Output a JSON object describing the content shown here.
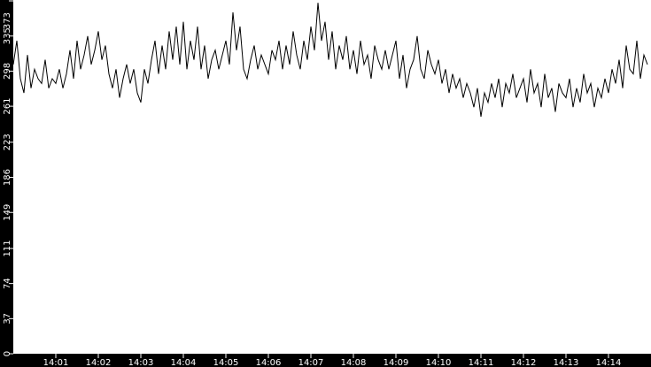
{
  "chart_data": {
    "type": "line",
    "title": "",
    "xlabel": "",
    "ylabel": "",
    "x_start": "14:00:00",
    "x_end": "14:15:00",
    "sample_interval_seconds": 5,
    "ylim": [
      0,
      373
    ],
    "y_ticks": [
      "0",
      "37",
      "74",
      "111",
      "149",
      "186",
      "223",
      "261",
      "298",
      "335",
      "373"
    ],
    "x_ticks": [
      "14:01",
      "14:02",
      "14:03",
      "14:04",
      "14:05",
      "14:06",
      "14:07",
      "14:08",
      "14:09",
      "14:10",
      "14:11",
      "14:12",
      "14:13",
      "14:14"
    ],
    "grid": false,
    "colors": {
      "background": "#000000",
      "plot": "#ffffff",
      "line": "#000000",
      "text": "#ffffff"
    },
    "values": [
      305,
      330,
      290,
      275,
      315,
      280,
      300,
      290,
      285,
      310,
      280,
      290,
      285,
      300,
      280,
      295,
      320,
      290,
      330,
      300,
      315,
      335,
      305,
      320,
      340,
      310,
      325,
      295,
      280,
      300,
      270,
      290,
      305,
      285,
      300,
      275,
      265,
      300,
      285,
      310,
      330,
      295,
      325,
      300,
      340,
      310,
      345,
      305,
      350,
      300,
      330,
      310,
      345,
      300,
      325,
      290,
      310,
      320,
      300,
      315,
      330,
      305,
      360,
      320,
      345,
      300,
      290,
      310,
      325,
      300,
      315,
      305,
      295,
      320,
      310,
      330,
      300,
      325,
      305,
      340,
      315,
      300,
      330,
      310,
      345,
      320,
      370,
      330,
      350,
      310,
      340,
      300,
      325,
      310,
      335,
      300,
      320,
      295,
      330,
      305,
      315,
      290,
      325,
      310,
      300,
      320,
      300,
      315,
      330,
      290,
      315,
      280,
      300,
      310,
      335,
      300,
      290,
      320,
      305,
      295,
      310,
      285,
      300,
      275,
      295,
      280,
      290,
      270,
      285,
      275,
      260,
      280,
      250,
      275,
      265,
      285,
      270,
      290,
      260,
      285,
      275,
      295,
      270,
      280,
      290,
      265,
      300,
      275,
      285,
      260,
      295,
      270,
      280,
      255,
      285,
      275,
      270,
      290,
      260,
      280,
      265,
      295,
      275,
      285,
      260,
      280,
      270,
      290,
      275,
      300,
      285,
      310,
      280,
      325,
      300,
      295,
      330,
      290,
      315,
      305
    ]
  }
}
